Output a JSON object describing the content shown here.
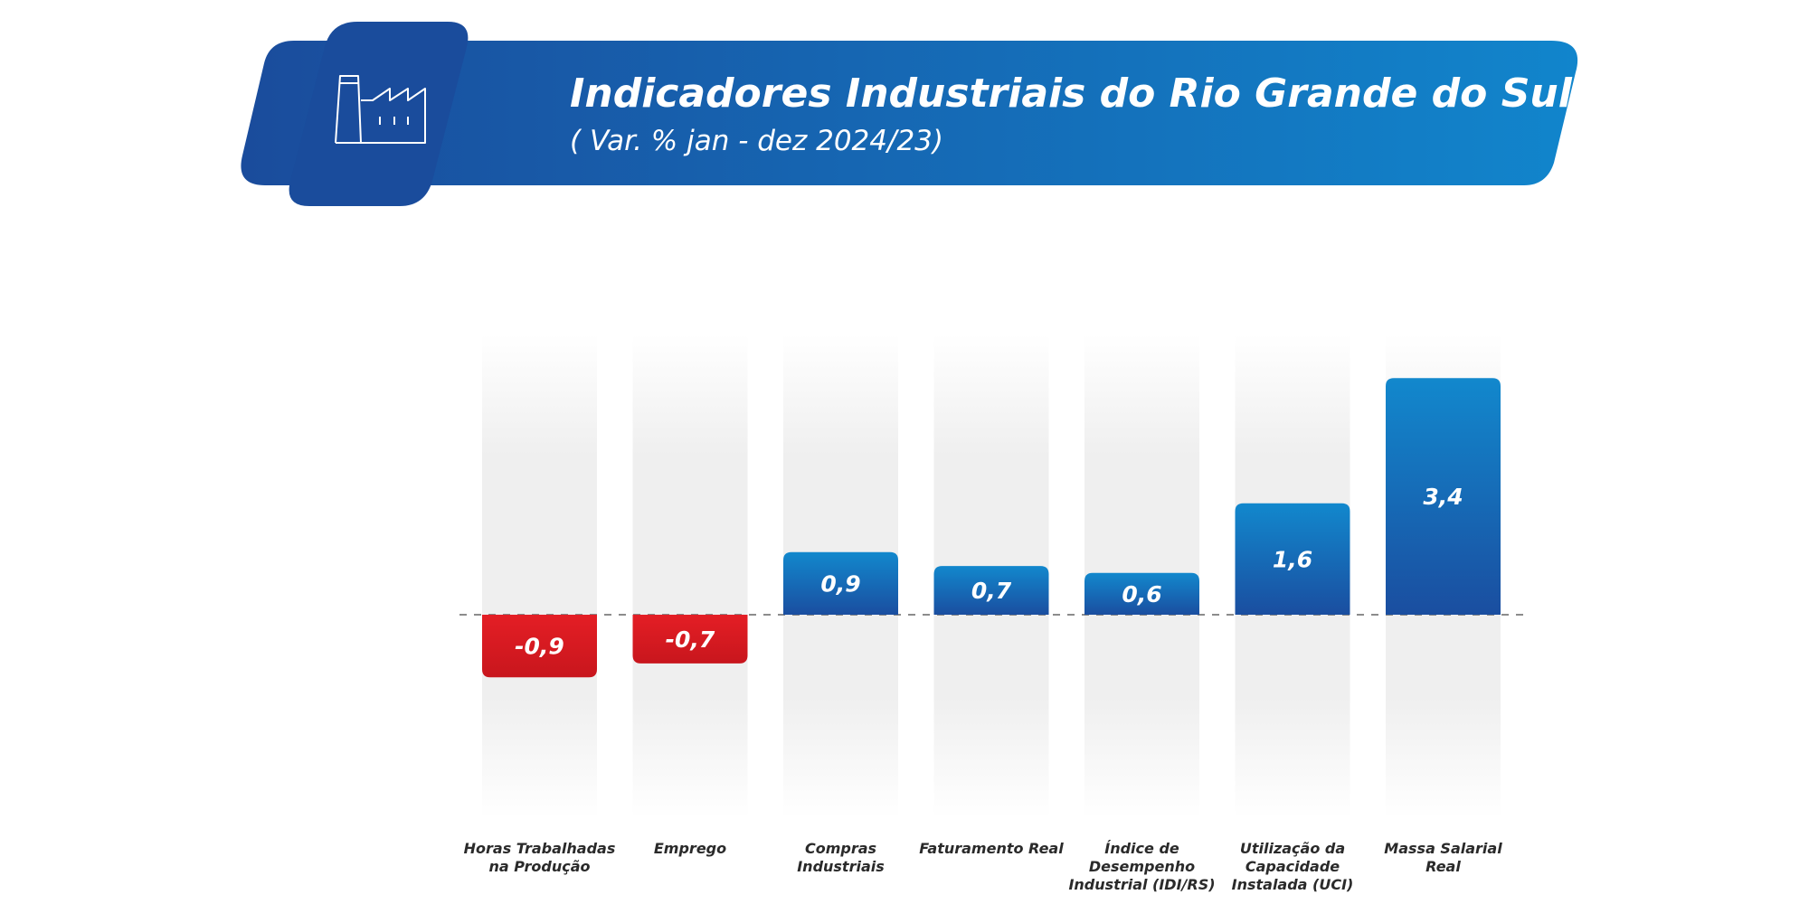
{
  "header": {
    "title": "Indicadores Industriais do Rio Grande do Sul",
    "subtitle": "( Var. % jan - dez 2024/23)",
    "icon": "factory-icon"
  },
  "colors": {
    "banner_dark": "#1a4c9c",
    "banner_light": "#1185cc",
    "positive_top": "#1288cd",
    "positive_bottom": "#1a4ea0",
    "negative_top": "#e41e25",
    "negative_bottom": "#c8161d",
    "track": "#ededed",
    "label_text": "#2a2a2a"
  },
  "chart_data": {
    "type": "bar",
    "categories": [
      "Horas Trabalhadas na Produção",
      "Emprego",
      "Compras Industriais",
      "Faturamento Real",
      "Índice de Desempenho Industrial (IDI/RS)",
      "Utilização da Capacidade Instalada (UCI)",
      "Massa Salarial Real"
    ],
    "category_lines": [
      [
        "Horas Trabalhadas",
        "na Produção"
      ],
      [
        "Emprego"
      ],
      [
        "Compras",
        "Industriais"
      ],
      [
        "Faturamento Real"
      ],
      [
        "Índice de",
        "Desempenho",
        "Industrial (IDI/RS)"
      ],
      [
        "Utilização da",
        "Capacidade",
        "Instalada (UCI)"
      ],
      [
        "Massa Salarial",
        "Real"
      ]
    ],
    "values": [
      -0.9,
      -0.7,
      0.9,
      0.7,
      0.6,
      1.6,
      3.4
    ],
    "value_labels": [
      "-0,9",
      "-0,7",
      "0,9",
      "0,7",
      "0,6",
      "1,6",
      "3,4"
    ],
    "baseline": 0,
    "grid": false,
    "legend": "none"
  }
}
